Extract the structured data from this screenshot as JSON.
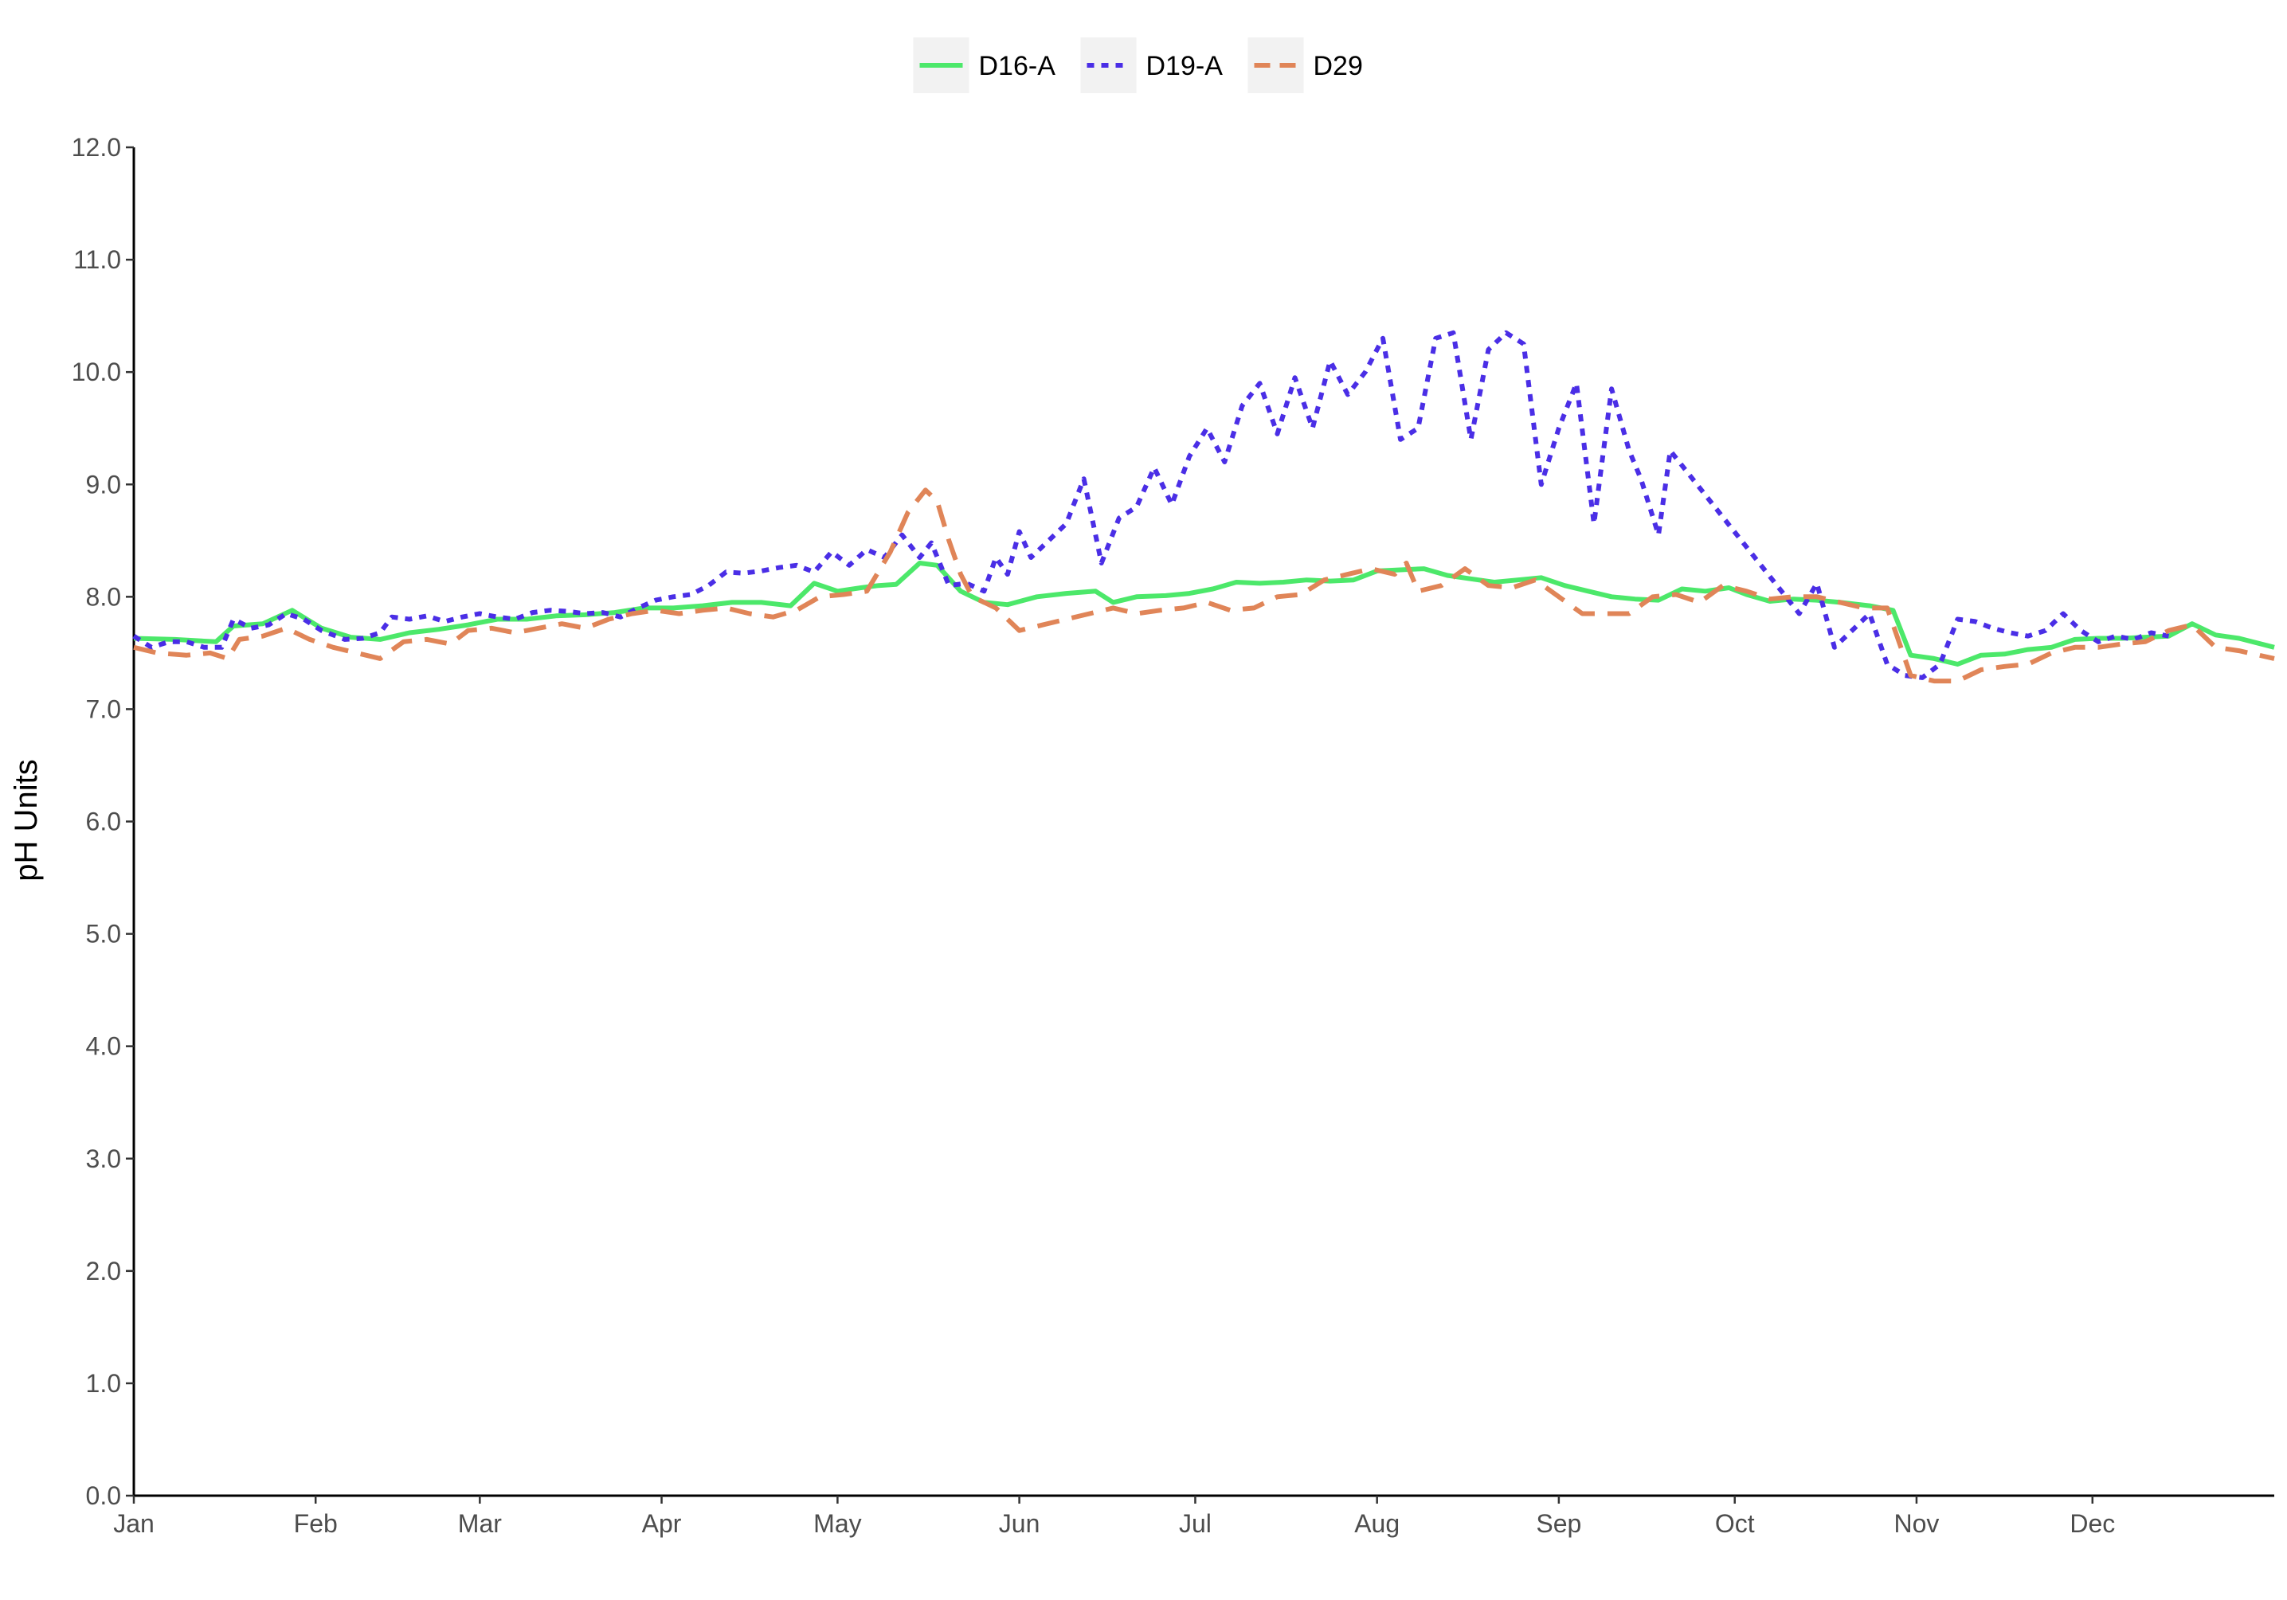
{
  "chart_data": {
    "type": "line",
    "title": "",
    "xlabel": "",
    "ylabel": "pH Units",
    "ylim": [
      0,
      12
    ],
    "yticks": [
      "0.0",
      "1.0",
      "2.0",
      "3.0",
      "4.0",
      "5.0",
      "6.0",
      "7.0",
      "8.0",
      "9.0",
      "10.0",
      "11.0",
      "12.0"
    ],
    "xlim": [
      1,
      366
    ],
    "xticks": [
      {
        "label": "Jan",
        "day": 1
      },
      {
        "label": "Feb",
        "day": 32
      },
      {
        "label": "Mar",
        "day": 60
      },
      {
        "label": "Apr",
        "day": 91
      },
      {
        "label": "May",
        "day": 121
      },
      {
        "label": "Jun",
        "day": 152
      },
      {
        "label": "Jul",
        "day": 182
      },
      {
        "label": "Aug",
        "day": 213
      },
      {
        "label": "Sep",
        "day": 244
      },
      {
        "label": "Oct",
        "day": 274
      },
      {
        "label": "Nov",
        "day": 305
      },
      {
        "label": "Dec",
        "day": 335
      }
    ],
    "grid": false,
    "legend": "top",
    "series": [
      {
        "name": "D16-A",
        "color": "#4ce86a",
        "style": "solid",
        "points": [
          [
            1,
            7.63
          ],
          [
            8,
            7.62
          ],
          [
            15,
            7.6
          ],
          [
            18,
            7.74
          ],
          [
            23,
            7.76
          ],
          [
            28,
            7.88
          ],
          [
            33,
            7.72
          ],
          [
            38,
            7.64
          ],
          [
            43,
            7.62
          ],
          [
            48,
            7.68
          ],
          [
            53,
            7.71
          ],
          [
            58,
            7.75
          ],
          [
            63,
            7.8
          ],
          [
            68,
            7.8
          ],
          [
            73,
            7.83
          ],
          [
            78,
            7.84
          ],
          [
            83,
            7.86
          ],
          [
            88,
            7.9
          ],
          [
            93,
            7.9
          ],
          [
            98,
            7.92
          ],
          [
            103,
            7.95
          ],
          [
            108,
            7.95
          ],
          [
            113,
            7.92
          ],
          [
            117,
            8.12
          ],
          [
            121,
            8.05
          ],
          [
            125,
            8.08
          ],
          [
            128,
            8.1
          ],
          [
            131,
            8.11
          ],
          [
            135,
            8.3
          ],
          [
            138,
            8.28
          ],
          [
            142,
            8.05
          ],
          [
            146,
            7.95
          ],
          [
            150,
            7.93
          ],
          [
            155,
            8.0
          ],
          [
            160,
            8.03
          ],
          [
            165,
            8.05
          ],
          [
            168,
            7.95
          ],
          [
            172,
            8.0
          ],
          [
            177,
            8.01
          ],
          [
            181,
            8.03
          ],
          [
            185,
            8.07
          ],
          [
            189,
            8.13
          ],
          [
            193,
            8.12
          ],
          [
            197,
            8.13
          ],
          [
            201,
            8.15
          ],
          [
            205,
            8.14
          ],
          [
            209,
            8.15
          ],
          [
            213,
            8.23
          ],
          [
            217,
            8.24
          ],
          [
            221,
            8.25
          ],
          [
            225,
            8.19
          ],
          [
            229,
            8.16
          ],
          [
            233,
            8.13
          ],
          [
            237,
            8.15
          ],
          [
            241,
            8.17
          ],
          [
            245,
            8.1
          ],
          [
            249,
            8.05
          ],
          [
            253,
            8.0
          ],
          [
            257,
            7.98
          ],
          [
            261,
            7.97
          ],
          [
            265,
            8.07
          ],
          [
            269,
            8.05
          ],
          [
            273,
            8.08
          ],
          [
            276,
            8.02
          ],
          [
            280,
            7.96
          ],
          [
            284,
            7.98
          ],
          [
            288,
            7.97
          ],
          [
            292,
            7.95
          ],
          [
            297,
            7.92
          ],
          [
            301,
            7.88
          ],
          [
            304,
            7.48
          ],
          [
            308,
            7.45
          ],
          [
            312,
            7.4
          ],
          [
            316,
            7.48
          ],
          [
            320,
            7.49
          ],
          [
            324,
            7.53
          ],
          [
            328,
            7.55
          ],
          [
            332,
            7.62
          ],
          [
            336,
            7.63
          ],
          [
            340,
            7.63
          ],
          [
            344,
            7.64
          ],
          [
            348,
            7.65
          ],
          [
            352,
            7.76
          ],
          [
            356,
            7.66
          ],
          [
            360,
            7.63
          ],
          [
            366,
            7.55
          ]
        ]
      },
      {
        "name": "D19-A",
        "color": "#4a2ee6",
        "style": "dotted",
        "points": [
          [
            1,
            7.65
          ],
          [
            4,
            7.55
          ],
          [
            7,
            7.6
          ],
          [
            10,
            7.6
          ],
          [
            13,
            7.55
          ],
          [
            16,
            7.55
          ],
          [
            18,
            7.8
          ],
          [
            21,
            7.72
          ],
          [
            24,
            7.75
          ],
          [
            27,
            7.85
          ],
          [
            30,
            7.8
          ],
          [
            33,
            7.7
          ],
          [
            37,
            7.62
          ],
          [
            40,
            7.63
          ],
          [
            43,
            7.68
          ],
          [
            45,
            7.82
          ],
          [
            48,
            7.8
          ],
          [
            51,
            7.83
          ],
          [
            54,
            7.78
          ],
          [
            57,
            7.82
          ],
          [
            60,
            7.85
          ],
          [
            63,
            7.82
          ],
          [
            66,
            7.8
          ],
          [
            69,
            7.86
          ],
          [
            72,
            7.88
          ],
          [
            75,
            7.87
          ],
          [
            78,
            7.85
          ],
          [
            81,
            7.86
          ],
          [
            84,
            7.82
          ],
          [
            87,
            7.9
          ],
          [
            90,
            7.97
          ],
          [
            93,
            8.0
          ],
          [
            96,
            8.02
          ],
          [
            99,
            8.1
          ],
          [
            102,
            8.22
          ],
          [
            105,
            8.21
          ],
          [
            108,
            8.23
          ],
          [
            111,
            8.26
          ],
          [
            114,
            8.28
          ],
          [
            117,
            8.22
          ],
          [
            120,
            8.4
          ],
          [
            123,
            8.28
          ],
          [
            126,
            8.42
          ],
          [
            129,
            8.35
          ],
          [
            132,
            8.55
          ],
          [
            135,
            8.35
          ],
          [
            137,
            8.48
          ],
          [
            140,
            8.1
          ],
          [
            143,
            8.12
          ],
          [
            146,
            8.05
          ],
          [
            148,
            8.35
          ],
          [
            150,
            8.2
          ],
          [
            152,
            8.58
          ],
          [
            154,
            8.35
          ],
          [
            156,
            8.45
          ],
          [
            158,
            8.55
          ],
          [
            160,
            8.65
          ],
          [
            163,
            9.05
          ],
          [
            166,
            8.3
          ],
          [
            169,
            8.7
          ],
          [
            172,
            8.8
          ],
          [
            175,
            9.15
          ],
          [
            178,
            8.82
          ],
          [
            181,
            9.25
          ],
          [
            184,
            9.5
          ],
          [
            187,
            9.2
          ],
          [
            190,
            9.7
          ],
          [
            193,
            9.9
          ],
          [
            196,
            9.45
          ],
          [
            199,
            9.95
          ],
          [
            202,
            9.5
          ],
          [
            205,
            10.1
          ],
          [
            208,
            9.8
          ],
          [
            211,
            10.0
          ],
          [
            214,
            10.3
          ],
          [
            217,
            9.4
          ],
          [
            220,
            9.5
          ],
          [
            223,
            10.3
          ],
          [
            226,
            10.35
          ],
          [
            229,
            9.4
          ],
          [
            232,
            10.2
          ],
          [
            235,
            10.35
          ],
          [
            238,
            10.25
          ],
          [
            241,
            9.0
          ],
          [
            244,
            9.5
          ],
          [
            247,
            9.9
          ],
          [
            250,
            8.65
          ],
          [
            253,
            9.85
          ],
          [
            256,
            9.3
          ],
          [
            258,
            9.05
          ],
          [
            261,
            8.55
          ],
          [
            263,
            9.3
          ],
          [
            285,
            7.85
          ],
          [
            288,
            8.12
          ],
          [
            291,
            7.55
          ],
          [
            294,
            7.7
          ],
          [
            297,
            7.85
          ],
          [
            300,
            7.4
          ],
          [
            303,
            7.3
          ],
          [
            306,
            7.28
          ],
          [
            309,
            7.4
          ],
          [
            312,
            7.8
          ],
          [
            315,
            7.78
          ],
          [
            318,
            7.72
          ],
          [
            321,
            7.68
          ],
          [
            324,
            7.65
          ],
          [
            327,
            7.7
          ],
          [
            330,
            7.85
          ],
          [
            333,
            7.7
          ],
          [
            336,
            7.6
          ],
          [
            339,
            7.65
          ],
          [
            342,
            7.62
          ],
          [
            345,
            7.68
          ],
          [
            348,
            7.65
          ]
        ]
      },
      {
        "name": "D29",
        "color": "#e08558",
        "style": "dashed",
        "points": [
          [
            1,
            7.55
          ],
          [
            5,
            7.5
          ],
          [
            10,
            7.48
          ],
          [
            14,
            7.5
          ],
          [
            17,
            7.45
          ],
          [
            19,
            7.62
          ],
          [
            23,
            7.65
          ],
          [
            27,
            7.72
          ],
          [
            31,
            7.62
          ],
          [
            35,
            7.55
          ],
          [
            39,
            7.5
          ],
          [
            43,
            7.45
          ],
          [
            47,
            7.6
          ],
          [
            51,
            7.62
          ],
          [
            55,
            7.58
          ],
          [
            58,
            7.7
          ],
          [
            62,
            7.72
          ],
          [
            66,
            7.68
          ],
          [
            70,
            7.72
          ],
          [
            74,
            7.76
          ],
          [
            78,
            7.72
          ],
          [
            82,
            7.8
          ],
          [
            86,
            7.85
          ],
          [
            90,
            7.88
          ],
          [
            94,
            7.85
          ],
          [
            98,
            7.88
          ],
          [
            102,
            7.9
          ],
          [
            106,
            7.85
          ],
          [
            110,
            7.82
          ],
          [
            114,
            7.88
          ],
          [
            118,
            8.0
          ],
          [
            122,
            8.02
          ],
          [
            126,
            8.05
          ],
          [
            130,
            8.4
          ],
          [
            133,
            8.75
          ],
          [
            136,
            8.95
          ],
          [
            138,
            8.85
          ],
          [
            140,
            8.5
          ],
          [
            142,
            8.2
          ],
          [
            144,
            8.0
          ],
          [
            148,
            7.9
          ],
          [
            152,
            7.7
          ],
          [
            156,
            7.75
          ],
          [
            160,
            7.8
          ],
          [
            164,
            7.85
          ],
          [
            168,
            7.9
          ],
          [
            172,
            7.85
          ],
          [
            176,
            7.88
          ],
          [
            180,
            7.9
          ],
          [
            184,
            7.95
          ],
          [
            188,
            7.88
          ],
          [
            192,
            7.9
          ],
          [
            196,
            8.0
          ],
          [
            200,
            8.02
          ],
          [
            204,
            8.15
          ],
          [
            208,
            8.2
          ],
          [
            212,
            8.25
          ],
          [
            216,
            8.2
          ],
          [
            218,
            8.3
          ],
          [
            220,
            8.05
          ],
          [
            224,
            8.1
          ],
          [
            228,
            8.25
          ],
          [
            232,
            8.1
          ],
          [
            236,
            8.08
          ],
          [
            240,
            8.15
          ],
          [
            244,
            8.0
          ],
          [
            248,
            7.85
          ],
          [
            252,
            7.85
          ],
          [
            256,
            7.85
          ],
          [
            260,
            8.0
          ],
          [
            264,
            8.02
          ],
          [
            268,
            7.95
          ],
          [
            272,
            8.1
          ],
          [
            276,
            8.05
          ],
          [
            280,
            7.98
          ],
          [
            284,
            8.0
          ],
          [
            288,
            8.0
          ],
          [
            292,
            7.95
          ],
          [
            296,
            7.9
          ],
          [
            300,
            7.9
          ],
          [
            304,
            7.3
          ],
          [
            308,
            7.25
          ],
          [
            312,
            7.25
          ],
          [
            316,
            7.35
          ],
          [
            320,
            7.38
          ],
          [
            324,
            7.4
          ],
          [
            328,
            7.5
          ],
          [
            332,
            7.55
          ],
          [
            336,
            7.55
          ],
          [
            340,
            7.58
          ],
          [
            344,
            7.6
          ],
          [
            348,
            7.7
          ],
          [
            352,
            7.75
          ],
          [
            356,
            7.55
          ],
          [
            360,
            7.52
          ],
          [
            366,
            7.45
          ]
        ]
      }
    ]
  }
}
